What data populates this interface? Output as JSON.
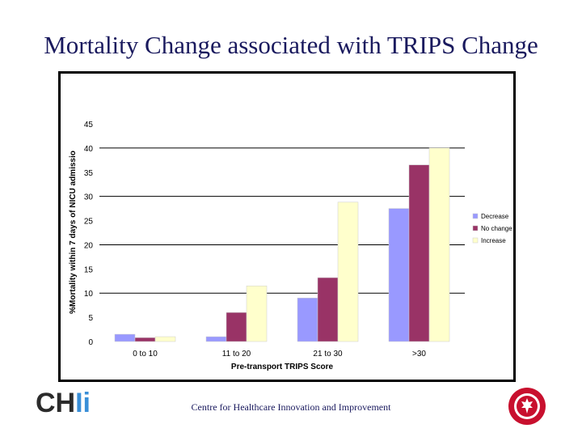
{
  "slide": {
    "title": "Mortality Change associated with TRIPS Change",
    "footer": "Centre for Healthcare Innovation and Improvement",
    "logo": {
      "part1": "CH",
      "part2": "Ii"
    }
  },
  "colors": {
    "title": "#1a1a5e",
    "decrease": "#9999ff",
    "no_change": "#993366",
    "increase": "#ffffcc",
    "seal": "#c8102e"
  },
  "chart_data": {
    "type": "bar",
    "title": "",
    "xlabel": "Pre-transport TRIPS Score",
    "ylabel": "%Mortality within 7 days of NICU admissio",
    "ylim": [
      0,
      45
    ],
    "yticks": [
      "0",
      "5",
      "10",
      "15",
      "20",
      "25",
      "30",
      "35",
      "40",
      "45"
    ],
    "gridlines": [
      10,
      20,
      30,
      40
    ],
    "categories": [
      "0 to 10",
      "11 to 20",
      "21 to 30",
      ">30"
    ],
    "series": [
      {
        "name": "Decrease",
        "color": "#9999ff",
        "values": [
          1.5,
          1.0,
          9.0,
          27.5
        ]
      },
      {
        "name": "No change",
        "color": "#993366",
        "values": [
          0.8,
          6.0,
          13.2,
          36.5
        ]
      },
      {
        "name": "Increase",
        "color": "#ffffcc",
        "values": [
          1.0,
          11.5,
          28.8,
          40.0
        ]
      }
    ],
    "legend_position": "right"
  }
}
